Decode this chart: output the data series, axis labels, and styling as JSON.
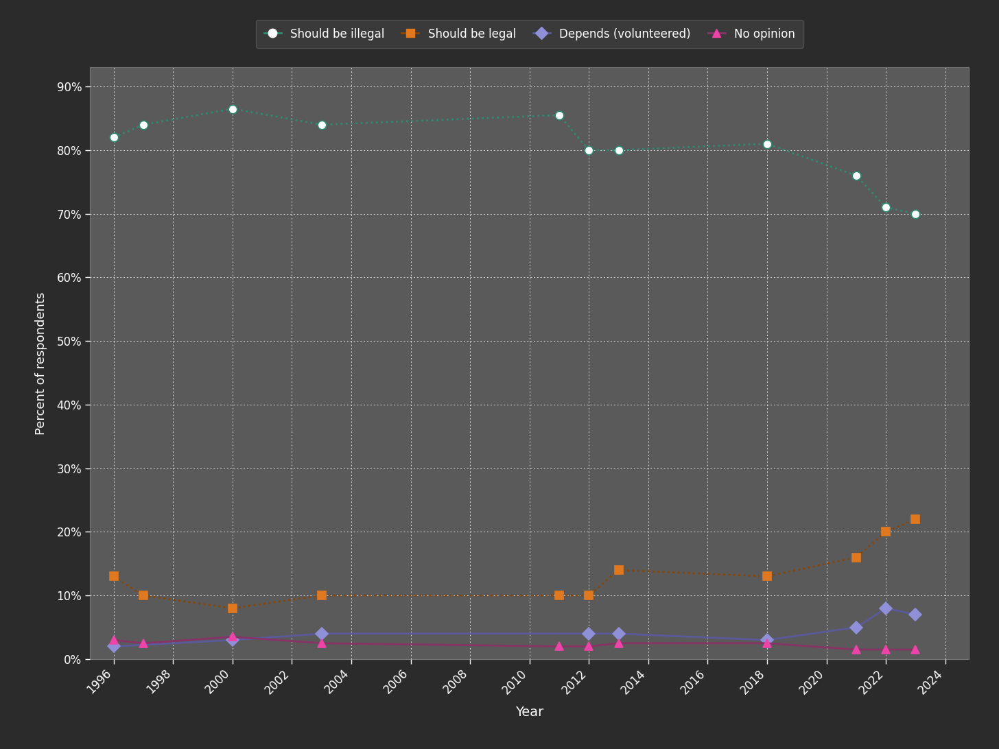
{
  "background_color": "#2b2b2b",
  "plot_bg_color": "#5a5a5a",
  "grid_color": "#ffffff",
  "text_color": "#ffffff",
  "xlabel": "Year",
  "ylabel": "Percent of respondents",
  "ylim": [
    0,
    0.93
  ],
  "yticks": [
    0.0,
    0.1,
    0.2,
    0.3,
    0.4,
    0.5,
    0.6,
    0.7,
    0.8,
    0.9
  ],
  "ytick_labels": [
    "0%",
    "10%",
    "20%",
    "30%",
    "40%",
    "50%",
    "60%",
    "70%",
    "80%",
    "90%"
  ],
  "series": [
    {
      "label": "Should be illegal",
      "line_color": "#2e8b72",
      "marker": "o",
      "marker_face": "#ffffff",
      "marker_edge": "#2e8b72",
      "marker_size": 9,
      "linewidth": 2.0,
      "linestyle": "dotted",
      "years": [
        1996,
        1997,
        2000,
        2003,
        2011,
        2012,
        2013,
        2018,
        2021,
        2022,
        2023
      ],
      "values": [
        0.82,
        0.84,
        0.865,
        0.84,
        0.855,
        0.8,
        0.8,
        0.81,
        0.76,
        0.71,
        0.7
      ]
    },
    {
      "label": "Should be legal",
      "line_color": "#8b4500",
      "marker": "s",
      "marker_face": "#e07820",
      "marker_edge": "#e07820",
      "marker_size": 9,
      "linewidth": 2.0,
      "linestyle": "dotted",
      "years": [
        1996,
        1997,
        2000,
        2003,
        2011,
        2012,
        2013,
        2018,
        2021,
        2022,
        2023
      ],
      "values": [
        0.13,
        0.1,
        0.08,
        0.1,
        0.1,
        0.1,
        0.14,
        0.13,
        0.16,
        0.2,
        0.22
      ]
    },
    {
      "label": "Depends (volunteered)",
      "line_color": "#5a5a9a",
      "marker": "D",
      "marker_face": "#9090d8",
      "marker_edge": "#9090d8",
      "marker_size": 9,
      "linewidth": 2.0,
      "linestyle": "solid",
      "years": [
        1996,
        2000,
        2003,
        2012,
        2013,
        2018,
        2021,
        2022,
        2023
      ],
      "values": [
        0.02,
        0.03,
        0.04,
        0.04,
        0.04,
        0.03,
        0.05,
        0.08,
        0.07
      ]
    },
    {
      "label": "No opinion",
      "line_color": "#883366",
      "marker": "^",
      "marker_face": "#ee44aa",
      "marker_edge": "#ee44aa",
      "marker_size": 9,
      "linewidth": 2.0,
      "linestyle": "solid",
      "years": [
        1996,
        1997,
        2000,
        2003,
        2011,
        2012,
        2013,
        2018,
        2021,
        2022,
        2023
      ],
      "values": [
        0.03,
        0.025,
        0.035,
        0.025,
        0.02,
        0.02,
        0.025,
        0.025,
        0.015,
        0.015,
        0.015
      ]
    }
  ],
  "xticks": [
    1996,
    1998,
    2000,
    2002,
    2004,
    2006,
    2008,
    2010,
    2012,
    2014,
    2016,
    2018,
    2020,
    2022,
    2024
  ],
  "xlim": [
    1995.2,
    2024.8
  ],
  "legend_facecolor": "#3d3d3d",
  "legend_edgecolor": "#555555"
}
